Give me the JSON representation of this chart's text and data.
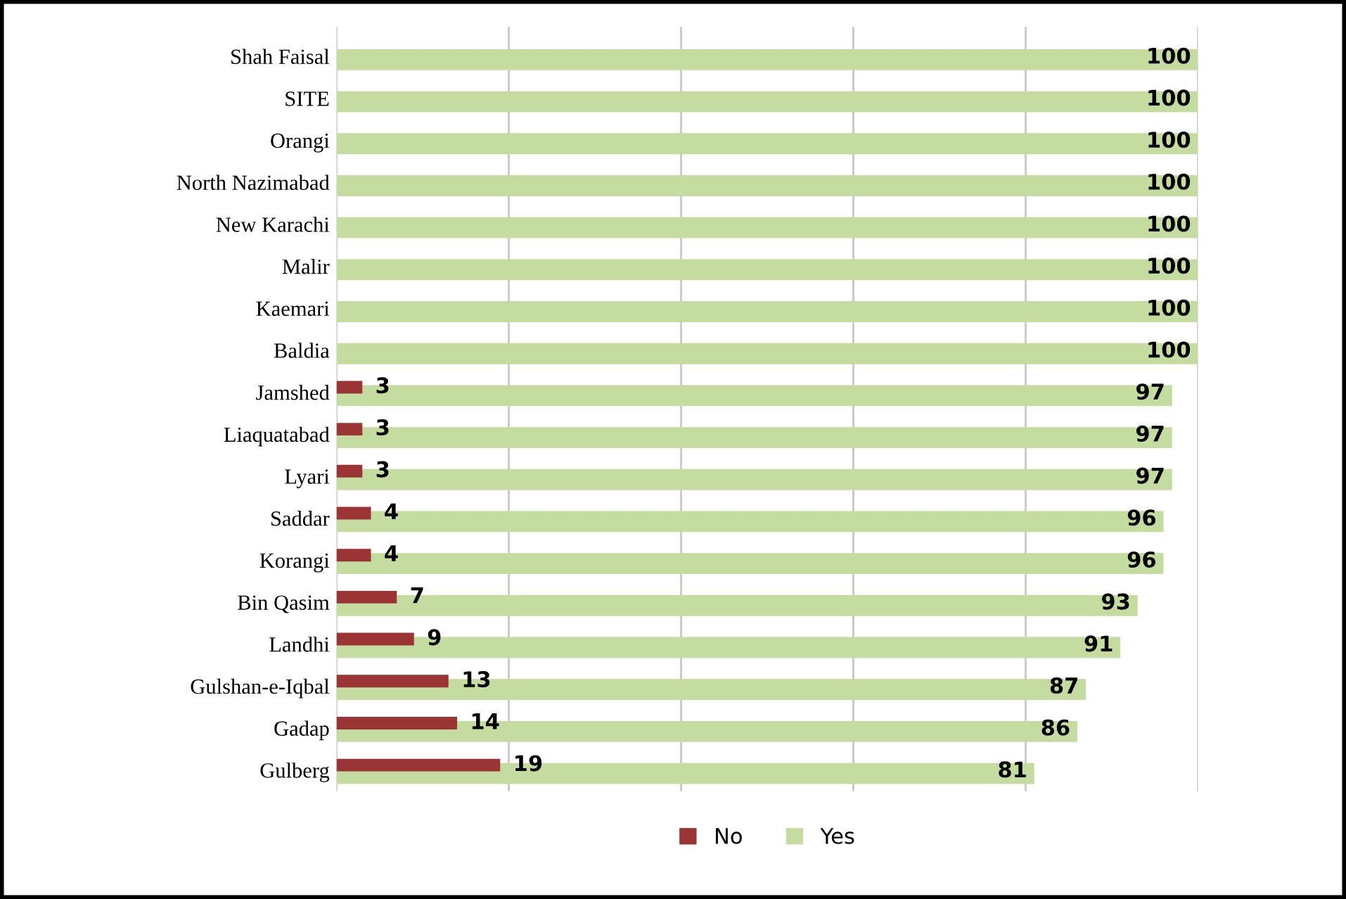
{
  "chart_data": {
    "type": "bar",
    "orientation": "horizontal",
    "categories": [
      "Shah Faisal",
      "SITE",
      "Orangi",
      "North Nazimabad",
      "New Karachi",
      "Malir",
      "Kaemari",
      "Baldia",
      "Jamshed",
      "Liaquatabad",
      "Lyari",
      "Saddar",
      "Korangi",
      "Bin Qasim",
      "Landhi",
      "Gulshan-e-Iqbal",
      "Gadap",
      "Gulberg"
    ],
    "series": [
      {
        "name": "No",
        "color": "#9b3535",
        "values": [
          null,
          null,
          null,
          null,
          null,
          null,
          null,
          null,
          3,
          3,
          3,
          4,
          4,
          7,
          9,
          13,
          14,
          19
        ]
      },
      {
        "name": "Yes",
        "color": "#c5dca0",
        "values": [
          100,
          100,
          100,
          100,
          100,
          100,
          100,
          100,
          97,
          97,
          97,
          96,
          96,
          93,
          91,
          87,
          86,
          81
        ]
      }
    ],
    "data_labels": true,
    "xlim": [
      0,
      100
    ],
    "xticks": [
      {
        "value": 0,
        "label": null
      },
      {
        "value": 20,
        "label": null
      },
      {
        "value": 40,
        "label": null
      },
      {
        "value": 60,
        "label": null
      },
      {
        "value": 80,
        "label": null
      },
      {
        "value": 100,
        "label": null
      }
    ],
    "tick_labels": "y",
    "grid": "x",
    "legend": "bottom"
  }
}
